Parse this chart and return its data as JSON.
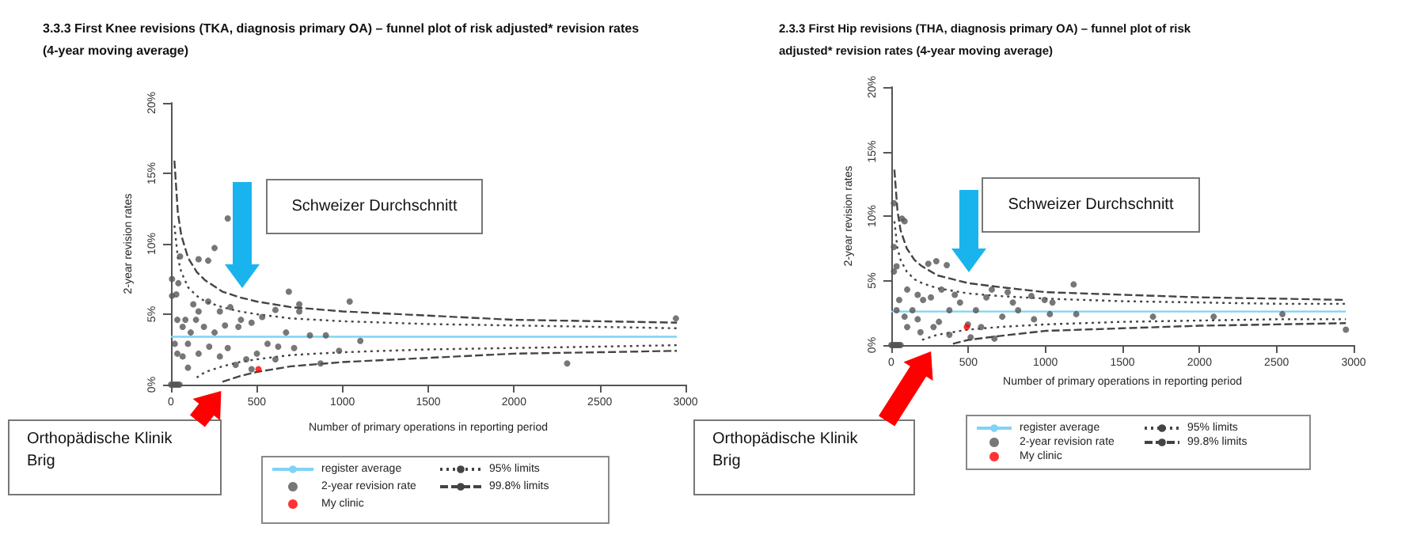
{
  "chart_data": [
    {
      "type": "scatter",
      "title": "3.3.3 First Knee revisions (TKA, diagnosis primary OA) – funnel plot of risk adjusted* revision rates (4-year moving average)",
      "xlabel": "Number of primary operations in reporting period",
      "ylabel": "2-year revision rates",
      "xlim": [
        0,
        3000
      ],
      "xticks": [
        0,
        500,
        1000,
        1500,
        2000,
        2500,
        3000
      ],
      "ylim": [
        0,
        20
      ],
      "yticks": [
        {
          "value": 0,
          "label": "0%"
        },
        {
          "value": 5,
          "label": "5%"
        },
        {
          "value": 10,
          "label": "10%"
        },
        {
          "value": 15,
          "label": "15%"
        },
        {
          "value": 20,
          "label": "20%"
        }
      ],
      "grid": false,
      "legend": "bottom",
      "annotations": [
        "Schweizer Durchschnitt",
        "Orthopädische Klinik Brig"
      ],
      "series": [
        {
          "name": "register average",
          "type": "line",
          "color": "#7fd3f5",
          "marker": "none",
          "line_style": "solid",
          "x": [
            0,
            2950
          ],
          "values": [
            3.4,
            3.4
          ]
        },
        {
          "name": "95% limits",
          "type": "line",
          "color": "#444444",
          "marker": "none",
          "line_style": "dotted",
          "x": [
            20,
            40,
            60,
            100,
            150,
            200,
            300,
            400,
            500,
            700,
            1000,
            1500,
            2000,
            2500,
            2950
          ],
          "values": [
            11.3,
            9.0,
            8.0,
            6.9,
            6.3,
            5.9,
            5.5,
            5.2,
            5.0,
            4.7,
            4.5,
            4.3,
            4.2,
            4.1,
            4.0
          ]
        },
        {
          "name": "2-year revision rate",
          "color": "#555555",
          "marker": "circle",
          "x": [
            0,
            10,
            20,
            30,
            40,
            50,
            331,
            254,
            53,
            6,
            43,
            6,
            31,
            161,
            217,
            687,
            1042,
            2944,
            2310,
            1104,
            872,
            980,
            903,
            810,
            748,
            748,
            609,
            532,
            470,
            408,
            346,
            285,
            217,
            161,
            130,
            84,
            37,
            68,
            99,
            68,
            99,
            161,
            223,
            285,
            331,
            377,
            439,
            470,
            563,
            625,
            671,
            718,
            254,
            192,
            115,
            146,
            22,
            37,
            315,
            393,
            501,
            609
          ],
          "values": [
            0,
            0,
            0,
            0,
            0,
            0,
            11.8,
            9.7,
            9.1,
            7.5,
            7.2,
            6.3,
            6.4,
            8.9,
            8.8,
            6.6,
            5.9,
            4.7,
            1.5,
            3.1,
            1.5,
            2.4,
            3.5,
            3.5,
            5.7,
            5.2,
            5.3,
            4.8,
            4.4,
            4.6,
            5.5,
            5.2,
            5.9,
            5.2,
            5.7,
            4.6,
            4.6,
            4.1,
            2.9,
            2.0,
            1.2,
            2.2,
            2.7,
            2.0,
            2.6,
            1.4,
            1.8,
            1.1,
            2.9,
            2.7,
            3.7,
            2.6,
            3.7,
            4.1,
            3.7,
            4.6,
            2.9,
            2.2,
            4.2,
            4.1,
            2.2,
            1.8
          ]
        },
        {
          "name": "99.8% limits",
          "type": "line",
          "color": "#444444",
          "marker": "none",
          "line_style": "dashed",
          "x": [
            20,
            40,
            60,
            100,
            150,
            200,
            300,
            400,
            500,
            700,
            1000,
            1500,
            2000,
            2500,
            2950
          ],
          "values": [
            15.9,
            12.2,
            10.6,
            9.0,
            8.0,
            7.4,
            6.6,
            6.2,
            5.9,
            5.5,
            5.2,
            4.9,
            4.6,
            4.5,
            4.4
          ]
        },
        {
          "name": "My clinic",
          "color": "#ff0000",
          "marker": "circle",
          "x": [
            510
          ],
          "values": [
            1.1
          ]
        },
        {
          "type": "line",
          "color": "#444444",
          "marker": "none",
          "line_style": "dotted",
          "x": [
            150,
            200,
            300,
            400,
            500,
            700,
            1000,
            1500,
            2000,
            2500,
            2950
          ],
          "values": [
            0.5,
            0.9,
            1.3,
            1.6,
            1.8,
            2.1,
            2.3,
            2.5,
            2.6,
            2.7,
            2.8
          ]
        },
        {
          "type": "line",
          "color": "#444444",
          "marker": "none",
          "line_style": "dashed",
          "x": [
            300,
            400,
            500,
            700,
            1000,
            1500,
            2000,
            2500,
            2950
          ],
          "values": [
            0.2,
            0.6,
            0.9,
            1.3,
            1.6,
            1.9,
            2.2,
            2.3,
            2.4
          ]
        }
      ]
    },
    {
      "type": "scatter",
      "title": "2.3.3 First Hip revisions (THA, diagnosis primary OA) – funnel plot of risk adjusted* revision rates (4-year moving average)",
      "xlabel": "Number of primary operations in reporting period",
      "ylabel": "2-year revision rates",
      "xlim": [
        0,
        3000
      ],
      "xticks": [
        0,
        500,
        1000,
        1500,
        2000,
        2500,
        3000
      ],
      "ylim": [
        0,
        20
      ],
      "yticks": [
        {
          "value": 0,
          "label": "0%"
        },
        {
          "value": 5,
          "label": "5%"
        },
        {
          "value": 10,
          "label": "10%"
        },
        {
          "value": 15,
          "label": "15%"
        },
        {
          "value": 20,
          "label": "20%"
        }
      ],
      "grid": false,
      "legend": "bottom",
      "annotations": [
        "Schweizer Durchschnitt",
        "Orthopädische Klinik Brig"
      ],
      "series": [
        {
          "name": "register average",
          "type": "line",
          "color": "#7fd3f5",
          "marker": "none",
          "line_style": "solid",
          "x": [
            0,
            2950
          ],
          "values": [
            2.6,
            2.6
          ]
        },
        {
          "name": "95% limits",
          "type": "line",
          "color": "#444444",
          "marker": "none",
          "line_style": "dotted",
          "x": [
            20,
            40,
            60,
            100,
            150,
            200,
            300,
            400,
            500,
            700,
            1000,
            1500,
            2000,
            2500,
            2950
          ],
          "values": [
            9.6,
            7.5,
            6.6,
            5.7,
            5.1,
            4.8,
            4.4,
            4.2,
            4.0,
            3.8,
            3.6,
            3.4,
            3.3,
            3.2,
            3.2
          ]
        },
        {
          "name": "2-year revision rate",
          "color": "#555555",
          "marker": "circle",
          "x": [
            0,
            10,
            20,
            30,
            40,
            50,
            60,
            17,
            34,
            17,
            17,
            69,
            86,
            240,
            292,
            360,
            1183,
            652,
            755,
            909,
            995,
            1029,
            1200,
            1698,
            2092,
            2538,
            2950,
            103,
            171,
            206,
            137,
            86,
            103,
            189,
            274,
            309,
            377,
            446,
            549,
            497,
            583,
            669,
            720,
            823,
            926,
            1046,
            257,
            326,
            412,
            51,
            34,
            171,
            617,
            789,
            515,
            377
          ],
          "values": [
            0,
            0,
            0,
            0,
            0,
            0,
            0,
            7.6,
            6.1,
            5.7,
            11.0,
            9.8,
            9.6,
            6.3,
            6.5,
            6.2,
            4.7,
            4.3,
            4.1,
            3.8,
            3.5,
            2.4,
            2.4,
            2.2,
            2.2,
            2.4,
            1.2,
            4.3,
            3.9,
            3.5,
            2.7,
            2.2,
            1.4,
            1.0,
            1.4,
            1.8,
            2.7,
            3.3,
            2.7,
            1.6,
            1.4,
            0.5,
            2.2,
            2.7,
            2.0,
            3.3,
            3.7,
            4.3,
            3.9,
            3.5,
            2.7,
            2.0,
            3.7,
            3.3,
            0.6,
            0.8
          ]
        },
        {
          "name": "99.8% limits",
          "type": "line",
          "color": "#444444",
          "marker": "none",
          "line_style": "dashed",
          "x": [
            20,
            40,
            60,
            100,
            150,
            200,
            300,
            400,
            500,
            700,
            1000,
            1500,
            2000,
            2500,
            2950
          ],
          "values": [
            13.6,
            10.4,
            8.9,
            7.5,
            6.6,
            6.1,
            5.4,
            5.1,
            4.8,
            4.5,
            4.1,
            3.9,
            3.7,
            3.6,
            3.5
          ]
        },
        {
          "name": "My clinic",
          "color": "#ff0000",
          "marker": "circle",
          "x": [
            490
          ],
          "values": [
            1.4
          ]
        },
        {
          "type": "line",
          "color": "#444444",
          "marker": "none",
          "line_style": "dotted",
          "x": [
            200,
            300,
            400,
            500,
            700,
            1000,
            1500,
            2000,
            2500,
            2950
          ],
          "values": [
            0.4,
            0.8,
            1.0,
            1.2,
            1.4,
            1.6,
            1.8,
            1.9,
            2.0,
            2.0
          ]
        },
        {
          "type": "line",
          "color": "#444444",
          "marker": "none",
          "line_style": "dashed",
          "x": [
            400,
            500,
            700,
            1000,
            1500,
            2000,
            2500,
            2950
          ],
          "values": [
            0.1,
            0.4,
            0.7,
            1.1,
            1.3,
            1.5,
            1.6,
            1.7
          ]
        }
      ]
    }
  ]
}
